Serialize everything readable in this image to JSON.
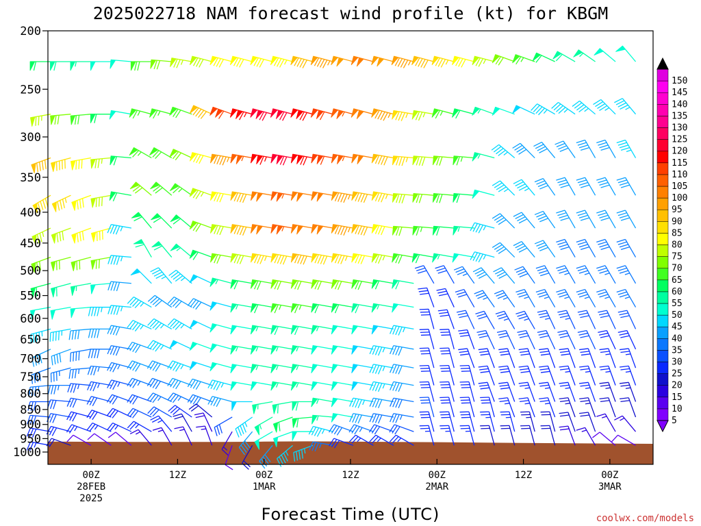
{
  "header": {
    "title": "2025022718 NAM forecast wind profile (kt) for KBGM"
  },
  "footer": {
    "credit": "coolwx.com/models"
  },
  "colors": {
    "terrain": "#a0522d",
    "credit": "#cc3333",
    "axes": "#000000"
  },
  "chart_data": {
    "type": "wind-barb-profile",
    "title": "2025022718 NAM forecast wind profile (kt) for KBGM",
    "xlabel": "Forecast Time (UTC)",
    "ylabel": "",
    "units": "kt",
    "y_scale": "log-pressure",
    "y_inverted": true,
    "ylim": [
      1000,
      200
    ],
    "y_ticks": [
      200,
      250,
      300,
      350,
      400,
      450,
      500,
      550,
      600,
      650,
      700,
      750,
      800,
      850,
      900,
      950,
      1000
    ],
    "x_ticks": [
      {
        "hours": 6,
        "lines": [
          "00Z",
          "28FEB",
          "2025"
        ]
      },
      {
        "hours": 18,
        "lines": [
          "12Z"
        ]
      },
      {
        "hours": 30,
        "lines": [
          "00Z",
          "1MAR"
        ]
      },
      {
        "hours": 42,
        "lines": [
          "12Z"
        ]
      },
      {
        "hours": 54,
        "lines": [
          "00Z",
          "2MAR"
        ]
      },
      {
        "hours": 66,
        "lines": [
          "12Z"
        ]
      },
      {
        "hours": 78,
        "lines": [
          "00Z",
          "3MAR"
        ]
      }
    ],
    "xlim_hours": [
      0,
      84
    ],
    "levels": [
      225,
      275,
      325,
      375,
      425,
      475,
      525,
      575,
      625,
      675,
      725,
      775,
      825,
      875,
      925,
      975
    ],
    "time_step_hours": 3,
    "surface_pressure": [
      {
        "hours": 0,
        "hPa": 961
      },
      {
        "hours": 12,
        "hPa": 962
      },
      {
        "hours": 24,
        "hPa": 962
      },
      {
        "hours": 30,
        "hPa": 961
      },
      {
        "hours": 36,
        "hPa": 960
      },
      {
        "hours": 48,
        "hPa": 962
      },
      {
        "hours": 54,
        "hPa": 963
      },
      {
        "hours": 66,
        "hPa": 966
      },
      {
        "hours": 78,
        "hPa": 968
      },
      {
        "hours": 84,
        "hPa": 969
      }
    ],
    "wind_speed_kt": [
      [
        62,
        58,
        55,
        52,
        50,
        68,
        70,
        75,
        78,
        80,
        80,
        82,
        84,
        90,
        95,
        98,
        100,
        98,
        95,
        90,
        85,
        80,
        75,
        70,
        65,
        62,
        58,
        55,
        52,
        50
      ],
      [
        75,
        72,
        68,
        62,
        50,
        65,
        65,
        68,
        90,
        110,
        115,
        120,
        120,
        118,
        110,
        105,
        100,
        95,
        85,
        75,
        65,
        60,
        55,
        50,
        48,
        45,
        45,
        45,
        45,
        45
      ],
      [
        90,
        88,
        82,
        75,
        60,
        65,
        68,
        72,
        80,
        95,
        105,
        115,
        120,
        118,
        112,
        105,
        100,
        90,
        85,
        78,
        72,
        65,
        55,
        45,
        42,
        42,
        42,
        42,
        42,
        45
      ],
      [
        88,
        85,
        82,
        78,
        60,
        70,
        68,
        65,
        75,
        80,
        90,
        100,
        105,
        102,
        100,
        95,
        90,
        85,
        78,
        72,
        68,
        60,
        50,
        45,
        45,
        42,
        42,
        40,
        40,
        42
      ],
      [
        75,
        78,
        80,
        80,
        45,
        62,
        62,
        60,
        70,
        78,
        90,
        100,
        105,
        102,
        100,
        95,
        90,
        82,
        72,
        65,
        60,
        55,
        45,
        42,
        40,
        40,
        40,
        40,
        40,
        40
      ],
      [
        70,
        72,
        72,
        70,
        45,
        58,
        58,
        55,
        60,
        70,
        78,
        85,
        88,
        90,
        88,
        85,
        80,
        75,
        68,
        62,
        55,
        50,
        45,
        40,
        40,
        40,
        38,
        38,
        38,
        38
      ],
      [
        60,
        58,
        55,
        50,
        42,
        48,
        45,
        45,
        48,
        55,
        62,
        68,
        72,
        72,
        72,
        70,
        68,
        62,
        58,
        30,
        30,
        35,
        40,
        40,
        38,
        38,
        36,
        36,
        35,
        35
      ],
      [
        52,
        52,
        50,
        45,
        45,
        45,
        42,
        40,
        42,
        48,
        55,
        60,
        65,
        65,
        62,
        60,
        58,
        55,
        50,
        28,
        28,
        32,
        35,
        36,
        35,
        35,
        35,
        35,
        35,
        35
      ],
      [
        45,
        45,
        42,
        40,
        40,
        45,
        45,
        45,
        48,
        50,
        52,
        55,
        58,
        58,
        55,
        52,
        50,
        48,
        45,
        28,
        28,
        30,
        32,
        33,
        33,
        33,
        33,
        32,
        30,
        30
      ],
      [
        40,
        40,
        38,
        38,
        38,
        42,
        45,
        48,
        50,
        52,
        55,
        55,
        55,
        55,
        52,
        50,
        48,
        45,
        42,
        28,
        28,
        28,
        30,
        30,
        30,
        30,
        30,
        30,
        28,
        28
      ],
      [
        38,
        36,
        35,
        35,
        35,
        40,
        42,
        45,
        48,
        50,
        52,
        55,
        55,
        55,
        52,
        50,
        48,
        45,
        42,
        28,
        28,
        28,
        28,
        28,
        28,
        28,
        28,
        28,
        26,
        26
      ],
      [
        35,
        35,
        33,
        33,
        33,
        35,
        38,
        40,
        42,
        45,
        50,
        52,
        55,
        55,
        52,
        50,
        48,
        45,
        40,
        28,
        28,
        28,
        28,
        28,
        28,
        28,
        26,
        26,
        25,
        25
      ],
      [
        32,
        32,
        30,
        30,
        30,
        32,
        35,
        35,
        38,
        42,
        48,
        55,
        58,
        58,
        55,
        50,
        45,
        40,
        38,
        28,
        28,
        28,
        28,
        28,
        26,
        26,
        25,
        25,
        24,
        24
      ],
      [
        30,
        30,
        28,
        28,
        28,
        30,
        30,
        28,
        20,
        30,
        45,
        55,
        60,
        60,
        55,
        50,
        42,
        38,
        35,
        30,
        28,
        28,
        28,
        26,
        25,
        25,
        24,
        24,
        22,
        22
      ],
      [
        28,
        28,
        25,
        25,
        25,
        25,
        25,
        22,
        18,
        15,
        42,
        50,
        52,
        50,
        45,
        38,
        35,
        32,
        30,
        28,
        28,
        28,
        26,
        25,
        24,
        22,
        22,
        20,
        15,
        15
      ],
      [
        25,
        22,
        10,
        10,
        12,
        15,
        15,
        15,
        15,
        12,
        20,
        40,
        45,
        45,
        35,
        28,
        25,
        25,
        25,
        25,
        25,
        25,
        22,
        20,
        20,
        20,
        18,
        15,
        10,
        10
      ]
    ],
    "wind_dir_deg": [
      [
        270,
        270,
        270,
        270,
        275,
        270,
        275,
        280,
        285,
        285,
        285,
        285,
        285,
        285,
        285,
        285,
        285,
        285,
        285,
        285,
        285,
        285,
        285,
        290,
        290,
        295,
        300,
        305,
        310,
        320
      ],
      [
        260,
        265,
        265,
        270,
        280,
        285,
        285,
        290,
        295,
        290,
        285,
        285,
        285,
        285,
        285,
        285,
        285,
        285,
        280,
        280,
        285,
        285,
        290,
        290,
        295,
        300,
        305,
        310,
        315,
        320
      ],
      [
        250,
        255,
        260,
        265,
        275,
        300,
        300,
        295,
        285,
        280,
        280,
        280,
        280,
        280,
        280,
        280,
        280,
        280,
        275,
        275,
        275,
        275,
        285,
        310,
        315,
        320,
        325,
        330,
        330,
        330
      ],
      [
        240,
        245,
        250,
        260,
        280,
        310,
        310,
        305,
        290,
        280,
        280,
        280,
        280,
        280,
        280,
        280,
        280,
        280,
        275,
        275,
        275,
        275,
        285,
        315,
        320,
        325,
        330,
        330,
        330,
        330
      ],
      [
        245,
        250,
        250,
        255,
        280,
        320,
        315,
        310,
        290,
        280,
        280,
        280,
        280,
        280,
        280,
        280,
        280,
        280,
        275,
        275,
        275,
        275,
        285,
        315,
        320,
        325,
        330,
        330,
        330,
        330
      ],
      [
        250,
        255,
        255,
        260,
        275,
        330,
        320,
        310,
        290,
        280,
        280,
        280,
        280,
        280,
        280,
        280,
        280,
        280,
        280,
        280,
        280,
        280,
        285,
        315,
        320,
        325,
        330,
        330,
        330,
        330
      ],
      [
        255,
        255,
        260,
        265,
        275,
        315,
        320,
        310,
        295,
        285,
        280,
        280,
        280,
        280,
        280,
        280,
        280,
        280,
        280,
        330,
        330,
        325,
        320,
        320,
        325,
        330,
        330,
        330,
        330,
        330
      ],
      [
        260,
        260,
        265,
        270,
        275,
        300,
        305,
        300,
        295,
        285,
        280,
        280,
        280,
        280,
        280,
        280,
        280,
        280,
        280,
        340,
        335,
        330,
        325,
        325,
        330,
        330,
        330,
        330,
        330,
        330
      ],
      [
        255,
        260,
        265,
        270,
        280,
        295,
        300,
        300,
        295,
        285,
        280,
        280,
        280,
        280,
        280,
        280,
        280,
        280,
        280,
        345,
        340,
        335,
        330,
        330,
        330,
        335,
        335,
        335,
        335,
        335
      ],
      [
        245,
        250,
        260,
        270,
        280,
        290,
        295,
        295,
        290,
        285,
        280,
        280,
        280,
        280,
        280,
        280,
        280,
        280,
        280,
        345,
        345,
        340,
        335,
        335,
        335,
        335,
        335,
        335,
        335,
        335
      ],
      [
        250,
        255,
        265,
        275,
        285,
        290,
        290,
        290,
        288,
        285,
        280,
        280,
        280,
        280,
        280,
        280,
        280,
        280,
        280,
        345,
        345,
        340,
        340,
        340,
        340,
        340,
        340,
        340,
        340,
        340
      ],
      [
        265,
        270,
        275,
        280,
        285,
        290,
        290,
        290,
        288,
        285,
        280,
        280,
        280,
        280,
        280,
        280,
        280,
        280,
        280,
        345,
        345,
        345,
        340,
        340,
        340,
        340,
        340,
        340,
        340,
        340
      ],
      [
        270,
        275,
        280,
        285,
        290,
        290,
        295,
        295,
        290,
        285,
        270,
        260,
        260,
        270,
        280,
        280,
        280,
        280,
        280,
        345,
        345,
        345,
        340,
        340,
        340,
        340,
        340,
        340,
        340,
        340
      ],
      [
        275,
        280,
        285,
        290,
        295,
        295,
        300,
        305,
        310,
        240,
        235,
        240,
        250,
        265,
        275,
        280,
        280,
        280,
        280,
        345,
        345,
        345,
        345,
        340,
        340,
        340,
        340,
        340,
        340,
        340
      ],
      [
        280,
        285,
        290,
        295,
        295,
        300,
        320,
        330,
        335,
        210,
        220,
        240,
        250,
        270,
        285,
        290,
        290,
        290,
        290,
        345,
        345,
        345,
        345,
        345,
        345,
        345,
        340,
        340,
        330,
        320
      ],
      [
        280,
        290,
        300,
        305,
        310,
        320,
        330,
        335,
        340,
        200,
        210,
        220,
        230,
        250,
        280,
        290,
        300,
        300,
        300,
        345,
        345,
        345,
        345,
        345,
        345,
        345,
        340,
        330,
        310,
        300
      ]
    ],
    "colorbar": {
      "ticks": [
        5,
        10,
        15,
        20,
        25,
        30,
        35,
        40,
        45,
        50,
        55,
        60,
        65,
        70,
        75,
        80,
        85,
        90,
        95,
        100,
        105,
        110,
        115,
        120,
        125,
        130,
        135,
        140,
        145,
        150
      ],
      "colors": [
        "#8000ff",
        "#5a00f0",
        "#2a00e0",
        "#1010cc",
        "#0a28ff",
        "#0a50ff",
        "#0a78ff",
        "#0aa0ff",
        "#00d8ff",
        "#00ffd0",
        "#00ffa0",
        "#00ff60",
        "#40ff20",
        "#80ff00",
        "#c0ff00",
        "#ffff00",
        "#ffe000",
        "#ffc000",
        "#ffa000",
        "#ff8000",
        "#ff6000",
        "#ff4000",
        "#ff0000",
        "#ff0030",
        "#ff0060",
        "#ff0090",
        "#ff00b0",
        "#ff00d0",
        "#ff00f0",
        "#e000e0"
      ]
    }
  }
}
